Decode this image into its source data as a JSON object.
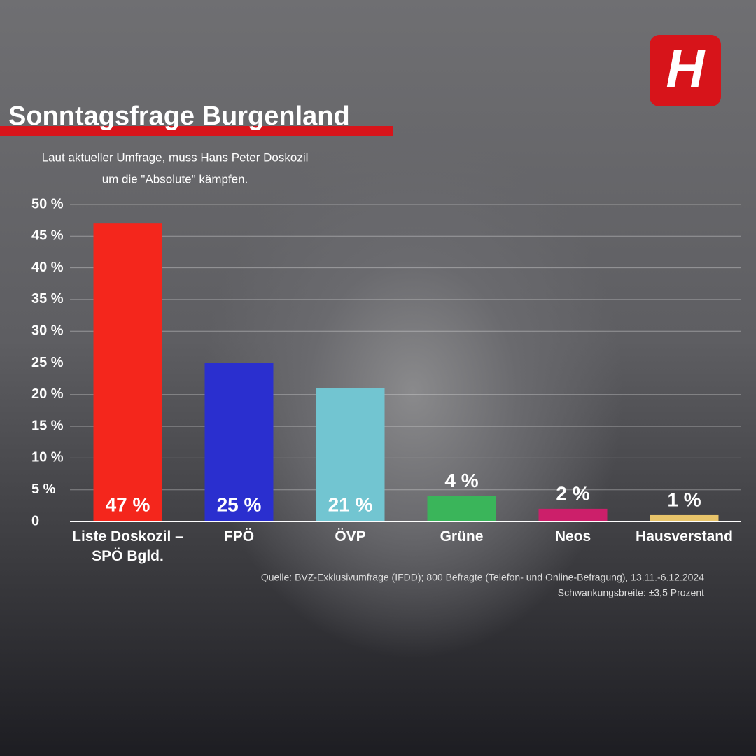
{
  "chart_data": {
    "type": "bar",
    "title": "Sonntagsfrage Burgenland",
    "subtitle": [
      "Laut aktueller Umfrage, muss Hans Peter Doskozil",
      "um die \"Absolute\" kämpfen."
    ],
    "categories": [
      "Liste Doskozil – SPÖ Bgld.",
      "FPÖ",
      "ÖVP",
      "Grüne",
      "Neos",
      "Hausverstand"
    ],
    "values": [
      47,
      25,
      21,
      4,
      2,
      1
    ],
    "value_labels": [
      "47 %",
      "25 %",
      "21 %",
      "4 %",
      "2 %",
      "1 %"
    ],
    "colors": [
      "#f4261c",
      "#2a2fcf",
      "#72c5d1",
      "#3ab55a",
      "#cc1f6a",
      "#e8c46a"
    ],
    "ylim": [
      0,
      50
    ],
    "yticks": [
      0,
      {
        "value": 5,
        "label": "5 %"
      },
      {
        "value": 10,
        "label": "10 %"
      },
      {
        "value": 15,
        "label": "15 %"
      },
      {
        "value": 20,
        "label": "20 %"
      },
      {
        "value": 25,
        "label": "25 %"
      },
      {
        "value": 30,
        "label": "30 %"
      },
      {
        "value": 35,
        "label": "35 %"
      },
      {
        "value": 40,
        "label": "40 %"
      },
      {
        "value": 45,
        "label": "45 %"
      },
      {
        "value": 50,
        "label": "50 %"
      }
    ],
    "grid": true,
    "source": [
      "Quelle: BVZ-Exklusivumfrage  (IFDD); 800 Befragte (Telefon- und Online-Befragung), 13.11.-6.12.2024",
      "Schwankungsbreite: ±3,5 Prozent"
    ],
    "logo": "H"
  }
}
